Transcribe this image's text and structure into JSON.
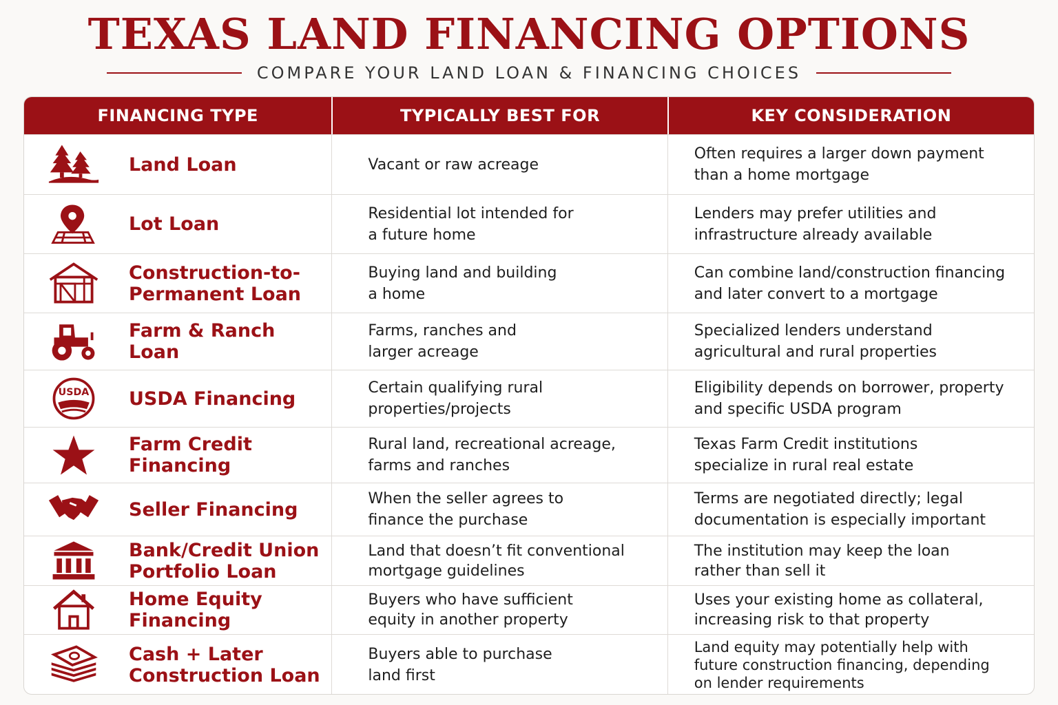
{
  "header": {
    "title": "TEXAS LAND FINANCING OPTIONS",
    "subtitle": "COMPARE YOUR LAND LOAN & FINANCING CHOICES"
  },
  "colors": {
    "accent": "#9b1116",
    "background": "#faf9f7",
    "text": "#1e1e1e"
  },
  "table": {
    "columns": [
      "FINANCING TYPE",
      "TYPICALLY BEST FOR",
      "KEY CONSIDERATION"
    ],
    "rows": [
      {
        "icon": "trees-icon",
        "type": "Land Loan",
        "best_for": [
          "Vacant or raw acreage"
        ],
        "consideration": [
          "Often requires a larger down payment",
          "than a home mortgage"
        ]
      },
      {
        "icon": "map-pin-icon",
        "type": "Lot Loan",
        "best_for": [
          "Residential lot intended for",
          "a future home"
        ],
        "consideration": [
          "Lenders may prefer utilities and",
          "infrastructure already available"
        ]
      },
      {
        "icon": "house-frame-icon",
        "type": "Construction-to-\nPermanent Loan",
        "best_for": [
          "Buying land and building",
          "a home"
        ],
        "consideration": [
          "Can combine land/construction financing",
          "and later convert to a mortgage"
        ]
      },
      {
        "icon": "tractor-icon",
        "type": "Farm & Ranch Loan",
        "best_for": [
          "Farms, ranches and",
          "larger acreage"
        ],
        "consideration": [
          "Specialized lenders understand",
          "agricultural and rural properties"
        ]
      },
      {
        "icon": "usda-seal-icon",
        "icon_text": "USDA",
        "type": "USDA Financing",
        "best_for": [
          "Certain qualifying rural",
          "properties/projects"
        ],
        "consideration": [
          "Eligibility depends on borrower, property",
          "and specific USDA program"
        ]
      },
      {
        "icon": "star-icon",
        "type": "Farm Credit\nFinancing",
        "best_for": [
          "Rural land, recreational acreage,",
          "farms and ranches"
        ],
        "consideration": [
          "Texas Farm Credit institutions",
          "specialize in rural real estate"
        ]
      },
      {
        "icon": "handshake-icon",
        "type": "Seller Financing",
        "best_for": [
          "When the seller agrees to",
          "finance the purchase"
        ],
        "consideration": [
          "Terms are negotiated directly; legal",
          "documentation is especially important"
        ]
      },
      {
        "icon": "bank-icon",
        "type": "Bank/Credit Union\nPortfolio Loan",
        "best_for": [
          "Land that doesn’t fit conventional",
          "mortgage guidelines"
        ],
        "consideration": [
          "The institution may keep the loan",
          "rather than sell it"
        ]
      },
      {
        "icon": "house-icon",
        "type": "Home Equity\nFinancing",
        "best_for": [
          "Buyers who have sufficient",
          "equity in another property"
        ],
        "consideration": [
          "Uses your existing home as collateral,",
          "increasing risk to that property"
        ]
      },
      {
        "icon": "cash-stack-icon",
        "type": "Cash + Later\nConstruction Loan",
        "best_for": [
          "Buyers able to purchase",
          "land first"
        ],
        "consideration": [
          "Land equity may potentially help with",
          "future construction financing, depending",
          "on lender requirements"
        ]
      }
    ]
  }
}
